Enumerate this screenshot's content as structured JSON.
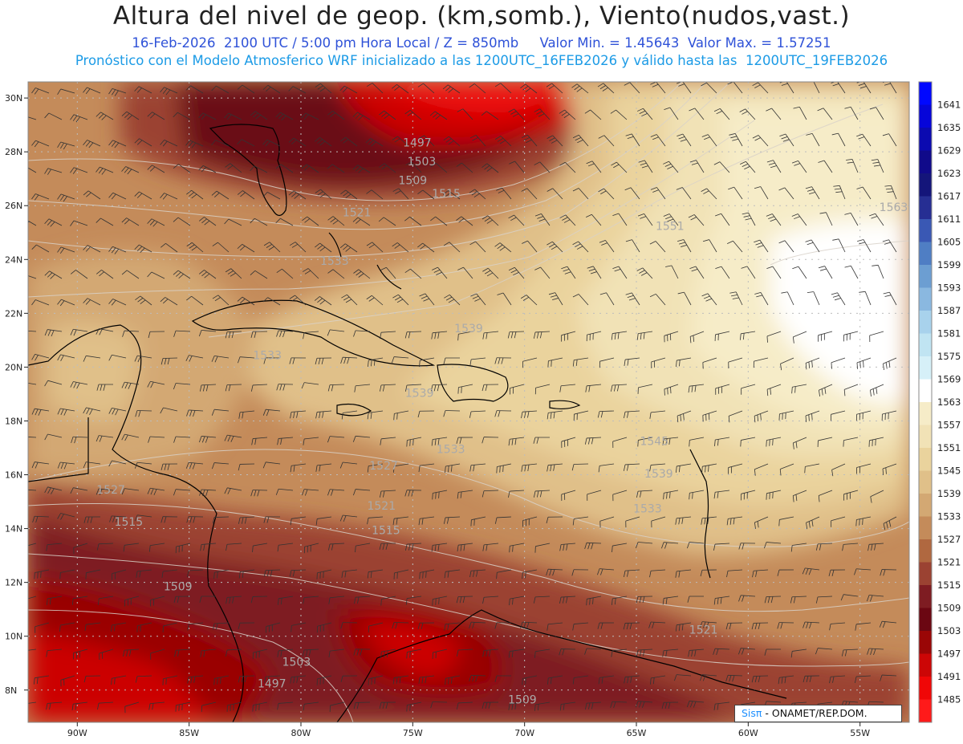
{
  "header": {
    "title": "Altura del nivel de geop. (km,somb.), Viento(nudos,vast.)",
    "subtitle_line1": "16-Feb-2026  2100 UTC / 5:00 pm Hora Local / Z = 850mb     Valor Min. = 1.45643  Valor Max. = 1.57251",
    "subtitle_line2": "Pronóstico con el Modelo Atmosferico WRF inicializado a las 1200UTC_16FEB2026 y válido hasta las  1200UTC_19FEB2026"
  },
  "map": {
    "lat_labels": [
      "30N",
      "28N",
      "26N",
      "24N",
      "22N",
      "20N",
      "18N",
      "16N",
      "14N",
      "12N",
      "10N",
      "8N"
    ],
    "lon_labels": [
      "90W",
      "85W",
      "80W",
      "75W",
      "70W",
      "65W",
      "60W",
      "55W"
    ],
    "contour_labels": [
      {
        "text": "1497",
        "lon": -74.8,
        "lat": 28.2
      },
      {
        "text": "1503",
        "lon": -74.6,
        "lat": 27.5
      },
      {
        "text": "1509",
        "lon": -75.0,
        "lat": 26.8
      },
      {
        "text": "1515",
        "lon": -73.5,
        "lat": 26.3
      },
      {
        "text": "1521",
        "lon": -77.5,
        "lat": 25.6
      },
      {
        "text": "1533",
        "lon": -78.5,
        "lat": 23.8
      },
      {
        "text": "1551",
        "lon": -63.5,
        "lat": 25.1
      },
      {
        "text": "1563",
        "lon": -53.5,
        "lat": 25.8
      },
      {
        "text": "1539",
        "lon": -72.5,
        "lat": 21.3
      },
      {
        "text": "1533",
        "lon": -81.5,
        "lat": 20.3
      },
      {
        "text": "1539",
        "lon": -74.7,
        "lat": 18.9
      },
      {
        "text": "1533",
        "lon": -73.3,
        "lat": 16.8
      },
      {
        "text": "1527",
        "lon": -76.3,
        "lat": 16.2
      },
      {
        "text": "1545",
        "lon": -64.2,
        "lat": 17.1
      },
      {
        "text": "1539",
        "lon": -64.0,
        "lat": 15.9
      },
      {
        "text": "1533",
        "lon": -64.5,
        "lat": 14.6
      },
      {
        "text": "1527",
        "lon": -88.5,
        "lat": 15.3
      },
      {
        "text": "1521",
        "lon": -76.4,
        "lat": 14.7
      },
      {
        "text": "1515",
        "lon": -76.2,
        "lat": 13.8
      },
      {
        "text": "1515",
        "lon": -87.7,
        "lat": 14.1
      },
      {
        "text": "1509",
        "lon": -85.5,
        "lat": 11.7
      },
      {
        "text": "1521",
        "lon": -62.0,
        "lat": 10.1
      },
      {
        "text": "1503",
        "lon": -80.2,
        "lat": 8.9
      },
      {
        "text": "1497",
        "lon": -81.3,
        "lat": 8.1
      },
      {
        "text": "1509",
        "lon": -70.1,
        "lat": 7.5
      }
    ]
  },
  "colorbar": {
    "labels": [
      "1641",
      "1635",
      "1629",
      "1623",
      "1617",
      "1611",
      "1605",
      "1599",
      "1593",
      "1587",
      "1581",
      "1575",
      "1569",
      "1563",
      "1557",
      "1551",
      "1545",
      "1539",
      "1533",
      "1527",
      "1521",
      "1515",
      "1509",
      "1503",
      "1497",
      "1491",
      "1485"
    ],
    "colors": [
      "#0008ff",
      "#0605d9",
      "#0b0ab0",
      "#100a8a",
      "#14157a",
      "#262e93",
      "#3a58b4",
      "#4f7ec4",
      "#6c9ed2",
      "#8ab8e0",
      "#a8d2ec",
      "#c0e4f2",
      "#d6f0f8",
      "#ffffff",
      "#f6ecc8",
      "#f1e2b6",
      "#ead39d",
      "#e0c089",
      "#d3a873",
      "#c48b5a",
      "#b06840",
      "#9b4232",
      "#7e1c22",
      "#6b0712",
      "#9a0606",
      "#cc0606",
      "#f00707",
      "#ff1a1a"
    ]
  },
  "credit": {
    "brand": "Sisπ",
    "text": " - ONAMET/REP.DOM."
  }
}
